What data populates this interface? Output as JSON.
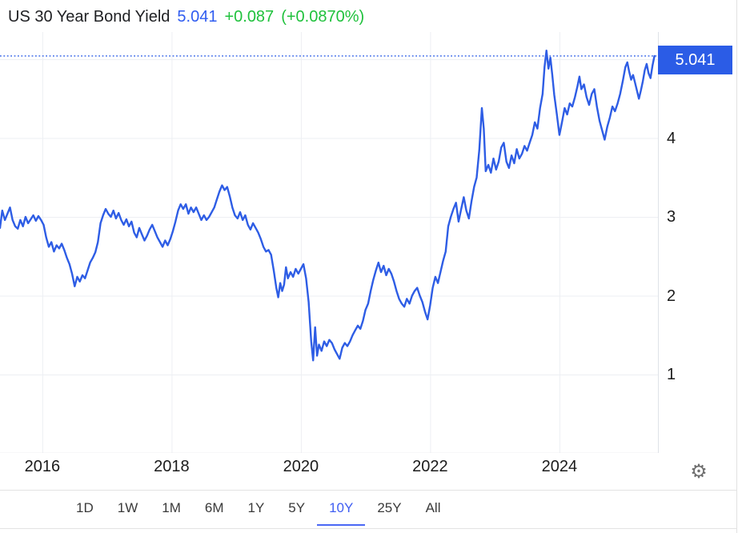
{
  "header": {
    "title": "US 30 Year Bond Yield",
    "price": "5.041",
    "change": "+0.087",
    "change_pct": "(+0.0870%)"
  },
  "price_badge": {
    "value": "5.041"
  },
  "toolbar": {
    "ranges": [
      {
        "label": "1D",
        "selected": false
      },
      {
        "label": "1W",
        "selected": false
      },
      {
        "label": "1M",
        "selected": false
      },
      {
        "label": "6M",
        "selected": false
      },
      {
        "label": "1Y",
        "selected": false
      },
      {
        "label": "5Y",
        "selected": false
      },
      {
        "label": "10Y",
        "selected": true
      },
      {
        "label": "25Y",
        "selected": false
      },
      {
        "label": "All",
        "selected": false
      }
    ]
  },
  "icons": {
    "gear": "⚙"
  },
  "colors": {
    "line_blue": "#2e5de5",
    "badge_blue": "#2b5ce6",
    "title_price_blue": "#2f5cf0",
    "change_green": "#1fc13c",
    "grid": "#edeff3",
    "axis_border": "#dfe2e8",
    "text_dark": "#1b1b1b",
    "gear_gray": "#6f6f6f"
  },
  "chart_data": {
    "type": "line",
    "title": "US 30 Year Bond Yield",
    "series_name": "US 30 Year Bond Yield (10Y range)",
    "x_unit": "decimal_year",
    "x_tick_labels": [
      "2016",
      "2018",
      "2020",
      "2022",
      "2024"
    ],
    "x_ticks": [
      2016,
      2018,
      2020,
      2022,
      2024
    ],
    "y_tick_labels": [
      "4",
      "3",
      "2",
      "1"
    ],
    "y_label_values": [
      4,
      3,
      2,
      1
    ],
    "y_grid_values": [
      5,
      4,
      3,
      2,
      1
    ],
    "x_range": [
      2015.345,
      2025.53
    ],
    "y_range_visible": [
      0.0,
      5.29
    ],
    "last_price": 5.041,
    "grid": true,
    "legend": "none",
    "points": [
      [
        2015.345,
        2.86
      ],
      [
        2015.38,
        3.08
      ],
      [
        2015.42,
        2.96
      ],
      [
        2015.46,
        3.04
      ],
      [
        2015.5,
        3.12
      ],
      [
        2015.54,
        2.96
      ],
      [
        2015.58,
        2.88
      ],
      [
        2015.62,
        2.85
      ],
      [
        2015.66,
        2.96
      ],
      [
        2015.7,
        2.88
      ],
      [
        2015.74,
        3.0
      ],
      [
        2015.78,
        2.92
      ],
      [
        2015.82,
        2.97
      ],
      [
        2015.86,
        3.02
      ],
      [
        2015.9,
        2.95
      ],
      [
        2015.94,
        3.01
      ],
      [
        2015.98,
        2.96
      ],
      [
        2016.02,
        2.9
      ],
      [
        2016.06,
        2.74
      ],
      [
        2016.1,
        2.62
      ],
      [
        2016.14,
        2.68
      ],
      [
        2016.18,
        2.56
      ],
      [
        2016.22,
        2.64
      ],
      [
        2016.26,
        2.6
      ],
      [
        2016.3,
        2.66
      ],
      [
        2016.34,
        2.58
      ],
      [
        2016.38,
        2.48
      ],
      [
        2016.42,
        2.4
      ],
      [
        2016.46,
        2.28
      ],
      [
        2016.5,
        2.12
      ],
      [
        2016.54,
        2.24
      ],
      [
        2016.58,
        2.18
      ],
      [
        2016.62,
        2.26
      ],
      [
        2016.66,
        2.22
      ],
      [
        2016.7,
        2.32
      ],
      [
        2016.74,
        2.42
      ],
      [
        2016.78,
        2.48
      ],
      [
        2016.82,
        2.55
      ],
      [
        2016.86,
        2.68
      ],
      [
        2016.9,
        2.92
      ],
      [
        2016.94,
        3.02
      ],
      [
        2016.98,
        3.1
      ],
      [
        2017.02,
        3.04
      ],
      [
        2017.06,
        3.0
      ],
      [
        2017.1,
        3.08
      ],
      [
        2017.14,
        2.98
      ],
      [
        2017.18,
        3.05
      ],
      [
        2017.22,
        2.96
      ],
      [
        2017.26,
        2.9
      ],
      [
        2017.3,
        2.97
      ],
      [
        2017.34,
        2.88
      ],
      [
        2017.38,
        2.94
      ],
      [
        2017.42,
        2.8
      ],
      [
        2017.46,
        2.74
      ],
      [
        2017.5,
        2.86
      ],
      [
        2017.54,
        2.78
      ],
      [
        2017.58,
        2.7
      ],
      [
        2017.62,
        2.76
      ],
      [
        2017.66,
        2.84
      ],
      [
        2017.7,
        2.9
      ],
      [
        2017.74,
        2.82
      ],
      [
        2017.78,
        2.74
      ],
      [
        2017.82,
        2.68
      ],
      [
        2017.86,
        2.62
      ],
      [
        2017.9,
        2.7
      ],
      [
        2017.94,
        2.64
      ],
      [
        2017.98,
        2.72
      ],
      [
        2018.02,
        2.82
      ],
      [
        2018.06,
        2.94
      ],
      [
        2018.1,
        3.08
      ],
      [
        2018.14,
        3.16
      ],
      [
        2018.18,
        3.1
      ],
      [
        2018.22,
        3.16
      ],
      [
        2018.26,
        3.04
      ],
      [
        2018.3,
        3.12
      ],
      [
        2018.34,
        3.06
      ],
      [
        2018.38,
        3.12
      ],
      [
        2018.42,
        3.04
      ],
      [
        2018.46,
        2.96
      ],
      [
        2018.5,
        3.02
      ],
      [
        2018.54,
        2.96
      ],
      [
        2018.58,
        3.0
      ],
      [
        2018.62,
        3.06
      ],
      [
        2018.66,
        3.12
      ],
      [
        2018.7,
        3.22
      ],
      [
        2018.74,
        3.32
      ],
      [
        2018.78,
        3.4
      ],
      [
        2018.82,
        3.34
      ],
      [
        2018.86,
        3.38
      ],
      [
        2018.9,
        3.26
      ],
      [
        2018.94,
        3.12
      ],
      [
        2018.98,
        3.02
      ],
      [
        2019.02,
        2.98
      ],
      [
        2019.06,
        3.06
      ],
      [
        2019.1,
        2.96
      ],
      [
        2019.14,
        3.02
      ],
      [
        2019.18,
        2.9
      ],
      [
        2019.22,
        2.84
      ],
      [
        2019.26,
        2.92
      ],
      [
        2019.3,
        2.86
      ],
      [
        2019.34,
        2.8
      ],
      [
        2019.38,
        2.72
      ],
      [
        2019.42,
        2.62
      ],
      [
        2019.46,
        2.56
      ],
      [
        2019.5,
        2.58
      ],
      [
        2019.54,
        2.52
      ],
      [
        2019.58,
        2.32
      ],
      [
        2019.62,
        2.1
      ],
      [
        2019.65,
        1.98
      ],
      [
        2019.68,
        2.16
      ],
      [
        2019.71,
        2.06
      ],
      [
        2019.74,
        2.14
      ],
      [
        2019.77,
        2.36
      ],
      [
        2019.8,
        2.22
      ],
      [
        2019.84,
        2.3
      ],
      [
        2019.88,
        2.24
      ],
      [
        2019.92,
        2.34
      ],
      [
        2019.96,
        2.28
      ],
      [
        2020.0,
        2.34
      ],
      [
        2020.04,
        2.4
      ],
      [
        2020.08,
        2.22
      ],
      [
        2020.12,
        1.92
      ],
      [
        2020.16,
        1.42
      ],
      [
        2020.19,
        1.18
      ],
      [
        2020.22,
        1.6
      ],
      [
        2020.25,
        1.24
      ],
      [
        2020.28,
        1.38
      ],
      [
        2020.32,
        1.3
      ],
      [
        2020.36,
        1.42
      ],
      [
        2020.4,
        1.36
      ],
      [
        2020.44,
        1.44
      ],
      [
        2020.48,
        1.4
      ],
      [
        2020.52,
        1.32
      ],
      [
        2020.56,
        1.26
      ],
      [
        2020.6,
        1.2
      ],
      [
        2020.64,
        1.34
      ],
      [
        2020.68,
        1.4
      ],
      [
        2020.72,
        1.36
      ],
      [
        2020.76,
        1.42
      ],
      [
        2020.8,
        1.5
      ],
      [
        2020.84,
        1.56
      ],
      [
        2020.88,
        1.62
      ],
      [
        2020.92,
        1.58
      ],
      [
        2020.96,
        1.68
      ],
      [
        2021.0,
        1.82
      ],
      [
        2021.04,
        1.9
      ],
      [
        2021.08,
        2.06
      ],
      [
        2021.12,
        2.2
      ],
      [
        2021.16,
        2.32
      ],
      [
        2021.2,
        2.42
      ],
      [
        2021.24,
        2.3
      ],
      [
        2021.28,
        2.38
      ],
      [
        2021.32,
        2.26
      ],
      [
        2021.36,
        2.34
      ],
      [
        2021.4,
        2.28
      ],
      [
        2021.44,
        2.18
      ],
      [
        2021.48,
        2.06
      ],
      [
        2021.52,
        1.96
      ],
      [
        2021.56,
        1.9
      ],
      [
        2021.6,
        1.86
      ],
      [
        2021.64,
        1.96
      ],
      [
        2021.68,
        1.9
      ],
      [
        2021.72,
        2.0
      ],
      [
        2021.76,
        2.06
      ],
      [
        2021.8,
        2.1
      ],
      [
        2021.84,
        2.0
      ],
      [
        2021.88,
        1.92
      ],
      [
        2021.92,
        1.8
      ],
      [
        2021.96,
        1.7
      ],
      [
        2022.0,
        1.88
      ],
      [
        2022.04,
        2.1
      ],
      [
        2022.08,
        2.24
      ],
      [
        2022.12,
        2.16
      ],
      [
        2022.16,
        2.3
      ],
      [
        2022.2,
        2.44
      ],
      [
        2022.24,
        2.56
      ],
      [
        2022.28,
        2.88
      ],
      [
        2022.32,
        3.0
      ],
      [
        2022.36,
        3.1
      ],
      [
        2022.4,
        3.18
      ],
      [
        2022.44,
        2.94
      ],
      [
        2022.48,
        3.1
      ],
      [
        2022.52,
        3.25
      ],
      [
        2022.56,
        3.08
      ],
      [
        2022.6,
        2.98
      ],
      [
        2022.64,
        3.2
      ],
      [
        2022.68,
        3.38
      ],
      [
        2022.72,
        3.5
      ],
      [
        2022.76,
        3.85
      ],
      [
        2022.8,
        4.38
      ],
      [
        2022.83,
        4.12
      ],
      [
        2022.86,
        3.58
      ],
      [
        2022.9,
        3.66
      ],
      [
        2022.94,
        3.56
      ],
      [
        2022.98,
        3.74
      ],
      [
        2023.02,
        3.6
      ],
      [
        2023.06,
        3.7
      ],
      [
        2023.1,
        3.88
      ],
      [
        2023.14,
        3.94
      ],
      [
        2023.18,
        3.7
      ],
      [
        2023.22,
        3.62
      ],
      [
        2023.26,
        3.78
      ],
      [
        2023.3,
        3.68
      ],
      [
        2023.34,
        3.86
      ],
      [
        2023.38,
        3.74
      ],
      [
        2023.42,
        3.8
      ],
      [
        2023.46,
        3.9
      ],
      [
        2023.5,
        3.84
      ],
      [
        2023.54,
        3.94
      ],
      [
        2023.58,
        4.04
      ],
      [
        2023.62,
        4.2
      ],
      [
        2023.66,
        4.12
      ],
      [
        2023.7,
        4.38
      ],
      [
        2023.74,
        4.56
      ],
      [
        2023.77,
        4.9
      ],
      [
        2023.8,
        5.11
      ],
      [
        2023.83,
        4.88
      ],
      [
        2023.86,
        5.02
      ],
      [
        2023.89,
        4.8
      ],
      [
        2023.92,
        4.55
      ],
      [
        2023.96,
        4.3
      ],
      [
        2024.0,
        4.04
      ],
      [
        2024.04,
        4.2
      ],
      [
        2024.08,
        4.38
      ],
      [
        2024.12,
        4.3
      ],
      [
        2024.16,
        4.44
      ],
      [
        2024.2,
        4.4
      ],
      [
        2024.24,
        4.52
      ],
      [
        2024.28,
        4.66
      ],
      [
        2024.31,
        4.78
      ],
      [
        2024.34,
        4.62
      ],
      [
        2024.38,
        4.68
      ],
      [
        2024.42,
        4.52
      ],
      [
        2024.46,
        4.42
      ],
      [
        2024.5,
        4.56
      ],
      [
        2024.54,
        4.62
      ],
      [
        2024.58,
        4.4
      ],
      [
        2024.62,
        4.22
      ],
      [
        2024.66,
        4.1
      ],
      [
        2024.7,
        3.98
      ],
      [
        2024.74,
        4.14
      ],
      [
        2024.78,
        4.26
      ],
      [
        2024.82,
        4.4
      ],
      [
        2024.86,
        4.34
      ],
      [
        2024.9,
        4.44
      ],
      [
        2024.94,
        4.56
      ],
      [
        2024.98,
        4.72
      ],
      [
        2025.02,
        4.9
      ],
      [
        2025.05,
        4.96
      ],
      [
        2025.08,
        4.84
      ],
      [
        2025.11,
        4.74
      ],
      [
        2025.14,
        4.8
      ],
      [
        2025.17,
        4.7
      ],
      [
        2025.2,
        4.6
      ],
      [
        2025.23,
        4.5
      ],
      [
        2025.26,
        4.6
      ],
      [
        2025.29,
        4.72
      ],
      [
        2025.32,
        4.86
      ],
      [
        2025.35,
        4.94
      ],
      [
        2025.38,
        4.82
      ],
      [
        2025.41,
        4.76
      ],
      [
        2025.44,
        4.92
      ],
      [
        2025.47,
        5.041
      ]
    ]
  }
}
